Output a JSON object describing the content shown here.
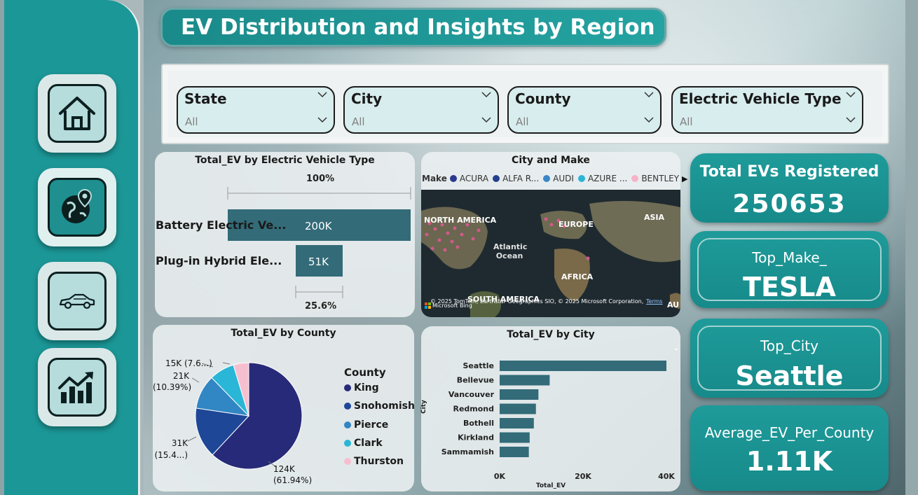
{
  "title": "EV Distribution and Insights by Region",
  "filters": [
    {
      "label": "State",
      "value": "All"
    },
    {
      "label": "City",
      "value": "All"
    },
    {
      "label": "County",
      "value": "All"
    },
    {
      "label": "Electric Vehicle Type",
      "value": "All"
    }
  ],
  "ev_type_chart": {
    "title": "Total_EV by Electric Vehicle Type",
    "top_pct": "100%",
    "bottom_pct": "25.6%",
    "bars": [
      {
        "label": "Battery Electric Ve...",
        "value_label": "200K"
      },
      {
        "label": "Plug-in Hybrid Ele...",
        "value_label": "51K"
      }
    ]
  },
  "map_card": {
    "title": "City and Make",
    "legend_title": "Make",
    "makes": [
      {
        "name": "ACURA",
        "color": "#2b3990"
      },
      {
        "name": "ALFA R...",
        "color": "#23408e"
      },
      {
        "name": "AUDI",
        "color": "#3a86c8"
      },
      {
        "name": "AZURE ...",
        "color": "#2cb5d6"
      },
      {
        "name": "BENTLEY",
        "color": "#f6b3c8"
      }
    ],
    "labels": {
      "na": "NORTH AMERICA",
      "europe": "EUROPE",
      "asia": "ASIA",
      "ocean": "Atlantic Ocean",
      "africa": "AFRICA",
      "sa": "SOUTH AMERICA",
      "au": "AU"
    },
    "attribution": "© 2025 TomTom, Earthstar Geographics SIO, © 2025 Microsoft Corporation, © OpenStreetMap",
    "terms": "Terms",
    "bing": "Microsoft Bing"
  },
  "county_chart": {
    "title": "Total_EV by County",
    "legend_title": "County",
    "slices": [
      {
        "name": "King",
        "value": 61.94,
        "color": "#262a78"
      },
      {
        "name": "Snohomish",
        "value": 15.4,
        "color": "#1e4797"
      },
      {
        "name": "Pierce",
        "value": 10.39,
        "color": "#3186c4"
      },
      {
        "name": "Clark",
        "value": 7.6,
        "color": "#2ab6d6"
      },
      {
        "name": "Thurston",
        "value": 4.67,
        "color": "#f6bfd0"
      }
    ],
    "labels": {
      "king_a": "124K",
      "king_b": "(61.94%)",
      "sno_a": "31K",
      "sno_b": "(15.4...)",
      "pierce_a": "21K",
      "pierce_b": "(10.39%)",
      "clark_a": "15K (7.6...)"
    }
  },
  "chart_data": {
    "type": "bar",
    "title": "Total_EV by City",
    "xlabel": "Total_EV",
    "ylabel": "City",
    "categories": [
      "Seattle",
      "Bellevue",
      "Vancouver",
      "Redmond",
      "Bothell",
      "Kirkland",
      "Sammamish"
    ],
    "values": [
      40000,
      12000,
      9300,
      8700,
      8200,
      7200,
      7000
    ],
    "xlim": [
      0,
      40000
    ],
    "ticks": [
      "0K",
      "20K",
      "40K"
    ]
  },
  "kpis": {
    "total_label": "Total EVs Registered",
    "total_value": "250653",
    "make_label": "Top_Make_",
    "make_value": "TESLA",
    "city_label": "Top_City",
    "city_value": "Seattle",
    "avg_label": "Average_EV_Per_County",
    "avg_value": "1.11K"
  },
  "nav": [
    "home-icon",
    "globe-location-icon",
    "car-icon",
    "chart-trend-icon"
  ]
}
